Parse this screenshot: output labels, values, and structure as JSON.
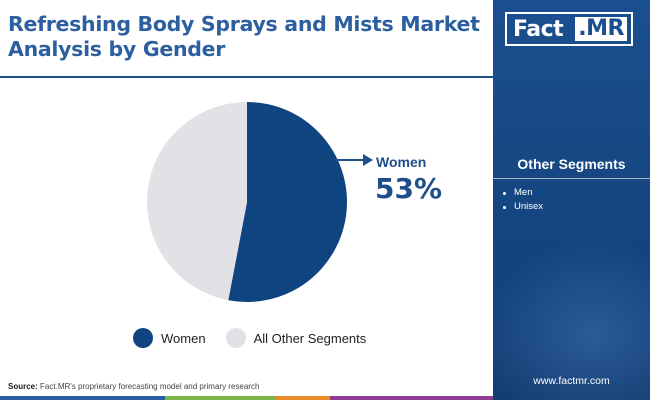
{
  "header": {
    "title": "Refreshing Body Sprays and Mists Market Analysis by Gender"
  },
  "logo": {
    "part1": "Fact",
    "part2": ".MR"
  },
  "side_panel": {
    "heading": "Other Segments",
    "items": [
      "Men",
      "Unisex"
    ],
    "website": "www.factmr.com"
  },
  "callout": {
    "label": "Women",
    "value": "53%"
  },
  "footer": {
    "source_label": "Source:",
    "source_text": "Fact.MR's proprietary forecasting model and primary research"
  },
  "colors": {
    "primary": "#0f4481",
    "other": "#e2e1e6",
    "panel": "#1a4f8f",
    "title": "#2c5fa0",
    "bar_segments": [
      "#2c5fa0",
      "#7ab648",
      "#e98a2b",
      "#8e3d93"
    ]
  },
  "chart_data": {
    "type": "pie",
    "title": "",
    "slices": [
      {
        "label": "Women",
        "value": 53,
        "color": "#0f4481"
      },
      {
        "label": "All Other Segments",
        "value": 47,
        "color": "#e2e1e6"
      }
    ],
    "start_angle_deg": 0,
    "direction": "clockwise",
    "legend": {
      "position": "bottom",
      "entries": [
        "Women",
        "All Other Segments"
      ]
    }
  }
}
